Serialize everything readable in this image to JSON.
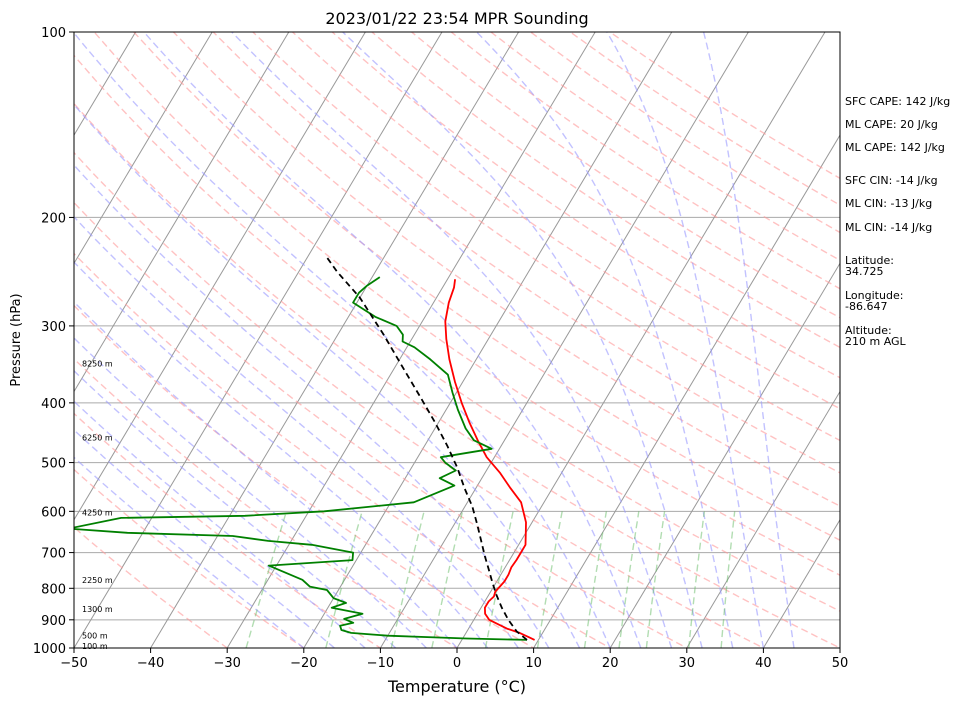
{
  "chart_data": {
    "type": "line",
    "title": "2023/01/22 23:54 MPR Sounding",
    "xlabel": "Temperature (°C)",
    "ylabel": "Pressure (hPa)",
    "xlim": [
      -50,
      50
    ],
    "ylim": [
      1000,
      100
    ],
    "y_scale": "log",
    "grid": true,
    "x_ticks": [
      "−50",
      "−40",
      "−30",
      "−20",
      "−10",
      "0",
      "10",
      "20",
      "30",
      "40",
      "50"
    ],
    "y_ticks": [
      {
        "p": 100,
        "label": "100"
      },
      {
        "p": 200,
        "label": "200"
      },
      {
        "p": 300,
        "label": "300"
      },
      {
        "p": 400,
        "label": "400"
      },
      {
        "p": 500,
        "label": "500"
      },
      {
        "p": 600,
        "label": "600"
      },
      {
        "p": 700,
        "label": "700"
      },
      {
        "p": 800,
        "label": "800"
      },
      {
        "p": 900,
        "label": "900"
      },
      {
        "p": 1000,
        "label": "1000"
      }
    ],
    "height_labels": [
      {
        "p": 345,
        "label": "8250 m"
      },
      {
        "p": 455,
        "label": "6250 m"
      },
      {
        "p": 603,
        "label": "4250 m"
      },
      {
        "p": 775,
        "label": "2250 m"
      },
      {
        "p": 865,
        "label": "1300 m"
      },
      {
        "p": 955,
        "label": "500 m"
      },
      {
        "p": 993,
        "label": "100 m"
      }
    ],
    "series": [
      {
        "role": "temperature",
        "color": "#ff0000",
        "points": [
          [
            9.5,
            970
          ],
          [
            8.5,
            960
          ],
          [
            7.0,
            945
          ],
          [
            5.0,
            930
          ],
          [
            3.5,
            915
          ],
          [
            2.0,
            900
          ],
          [
            1.0,
            880
          ],
          [
            0.5,
            860
          ],
          [
            0.5,
            840
          ],
          [
            0.8,
            825
          ],
          [
            0.6,
            810
          ],
          [
            0.8,
            795
          ],
          [
            1.0,
            780
          ],
          [
            1.0,
            760
          ],
          [
            0.8,
            740
          ],
          [
            0.9,
            720
          ],
          [
            0.9,
            700
          ],
          [
            0.9,
            680
          ],
          [
            0.0,
            650
          ],
          [
            -0.8,
            625
          ],
          [
            -2.0,
            600
          ],
          [
            -3.0,
            580
          ],
          [
            -5.5,
            550
          ],
          [
            -8.0,
            520
          ],
          [
            -11.0,
            490
          ],
          [
            -13.5,
            460
          ],
          [
            -16.0,
            430
          ],
          [
            -18.5,
            400
          ],
          [
            -21.0,
            370
          ],
          [
            -23.5,
            340
          ],
          [
            -25.5,
            315
          ],
          [
            -27.0,
            295
          ],
          [
            -28.0,
            275
          ],
          [
            -28.5,
            260
          ],
          [
            -29.0,
            252
          ]
        ]
      },
      {
        "role": "dewpoint",
        "color": "#008000",
        "points": [
          [
            8.5,
            970
          ],
          [
            0.5,
            965
          ],
          [
            -10.0,
            955
          ],
          [
            -15.0,
            945
          ],
          [
            -16.5,
            935
          ],
          [
            -17.0,
            920
          ],
          [
            -15.5,
            910
          ],
          [
            -17.0,
            897
          ],
          [
            -15.0,
            880
          ],
          [
            -19.5,
            860
          ],
          [
            -18.0,
            845
          ],
          [
            -20.0,
            830
          ],
          [
            -21.5,
            805
          ],
          [
            -24.0,
            795
          ],
          [
            -25.5,
            775
          ],
          [
            -31.0,
            735
          ],
          [
            -20.5,
            720
          ],
          [
            -21.0,
            700
          ],
          [
            -27.0,
            680
          ],
          [
            -33.0,
            670
          ],
          [
            -38.0,
            658
          ],
          [
            -52.0,
            650
          ],
          [
            -60.0,
            640
          ],
          [
            -54.0,
            615
          ],
          [
            -38.0,
            610
          ],
          [
            -28.0,
            600
          ],
          [
            -17.0,
            580
          ],
          [
            -13.0,
            545
          ],
          [
            -15.5,
            530
          ],
          [
            -14.0,
            515
          ],
          [
            -16.0,
            500
          ],
          [
            -17.0,
            490
          ],
          [
            -11.0,
            475
          ],
          [
            -14.0,
            460
          ],
          [
            -16.0,
            440
          ],
          [
            -18.5,
            410
          ],
          [
            -20.5,
            385
          ],
          [
            -22.5,
            360
          ],
          [
            -26.0,
            340
          ],
          [
            -29.0,
            325
          ],
          [
            -31.0,
            318
          ],
          [
            -31.5,
            310
          ],
          [
            -33.0,
            300
          ],
          [
            -36.5,
            290
          ],
          [
            -40.5,
            275
          ],
          [
            -40.5,
            265
          ],
          [
            -40.0,
            258
          ],
          [
            -39.0,
            250
          ]
        ]
      },
      {
        "role": "parcel",
        "color": "#000000",
        "dash": "6,4",
        "points": [
          [
            8.5,
            970
          ],
          [
            6.5,
            940
          ],
          [
            4.5,
            900
          ],
          [
            2.7,
            860
          ],
          [
            1.0,
            820
          ],
          [
            -0.6,
            780
          ],
          [
            -2.0,
            745
          ],
          [
            -3.5,
            710
          ],
          [
            -5.2,
            670
          ],
          [
            -7.0,
            630
          ],
          [
            -9.0,
            590
          ],
          [
            -11.5,
            550
          ],
          [
            -14.0,
            510
          ],
          [
            -17.0,
            470
          ],
          [
            -20.5,
            430
          ],
          [
            -24.5,
            390
          ],
          [
            -29.0,
            350
          ],
          [
            -34.0,
            310
          ],
          [
            -40.0,
            270
          ],
          [
            -45.0,
            245
          ],
          [
            -47.5,
            232
          ]
        ]
      }
    ],
    "side_stats": {
      "sfc_cape": "SFC CAPE: 142 J/kg",
      "ml_cape_1": "ML CAPE: 20 J/kg",
      "ml_cape_2": "ML CAPE: 142 J/kg",
      "sfc_cin": "SFC CIN: -14 J/kg",
      "ml_cin_1": "ML CIN: -13 J/kg",
      "ml_cin_2": "ML CIN: -14 J/kg",
      "latitude": "Latitude:\n34.725",
      "longitude": "Longitude:\n-86.647",
      "altitude": "Altitude:\n210 m AGL"
    },
    "colors": {
      "dry_adiabat": "#ff9999",
      "moist_adiabat": "#9999ff",
      "mixing_ratio": "#66bb66",
      "isotherm": "#999999",
      "isobar": "#aaaaaa"
    }
  }
}
